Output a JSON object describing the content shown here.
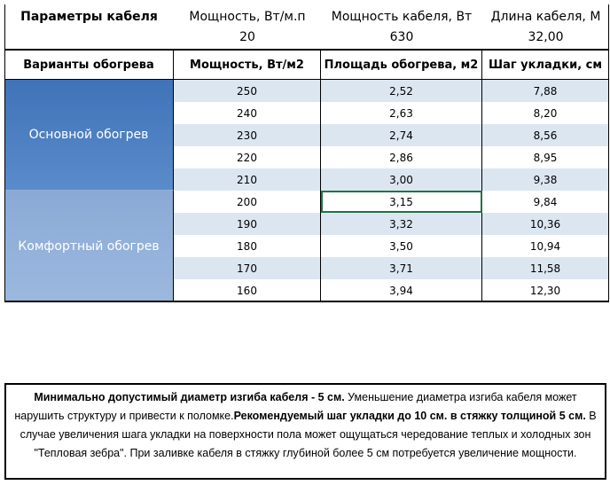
{
  "params": {
    "title": "Параметры кабеля",
    "columns": [
      {
        "label": "Мощность, Вт/м.п",
        "value": "20"
      },
      {
        "label": "Мощность кабеля, Вт",
        "value": "630"
      },
      {
        "label": "Длина кабеля, М",
        "value": "32,00"
      }
    ]
  },
  "table": {
    "headers": [
      "Варианты обогрева",
      "Мощность, Вт/м2",
      "Площадь обогрева, м2",
      "Шаг укладки, см"
    ],
    "groups": [
      {
        "name": "Основной обогрев",
        "rows": [
          [
            "250",
            "2,52",
            "7,88"
          ],
          [
            "240",
            "2,63",
            "8,20"
          ],
          [
            "230",
            "2,74",
            "8,56"
          ],
          [
            "220",
            "2,86",
            "8,95"
          ],
          [
            "210",
            "3,00",
            "9,38"
          ]
        ]
      },
      {
        "name": "Комфортный обогрев",
        "rows": [
          [
            "200",
            "3,15",
            "9,84"
          ],
          [
            "190",
            "3,32",
            "10,36"
          ],
          [
            "180",
            "3,50",
            "10,94"
          ],
          [
            "170",
            "3,71",
            "11,58"
          ],
          [
            "160",
            "3,94",
            "12,30"
          ]
        ]
      }
    ]
  },
  "note": [
    {
      "text": "Минимально допустимый диаметр изгиба кабеля - 5 см.",
      "bold": true
    },
    {
      "text": "  Уменьшение диаметра изгиба кабеля может нарушить структуру и привести к поломке.",
      "bold": false
    },
    {
      "text": "Рекомендуемый шаг укладки до 10 см. в стяжку толщиной 5 см.",
      "bold": true
    },
    {
      "text": " В  случае увеличения шага укладки на поверхности пола может ощущаться чередование теплых и холодных зон \"Тепловая зебра\". При заливке кабеля в стяжку глубиной более 5 см потребуется увеличение мощности.",
      "bold": false
    }
  ]
}
